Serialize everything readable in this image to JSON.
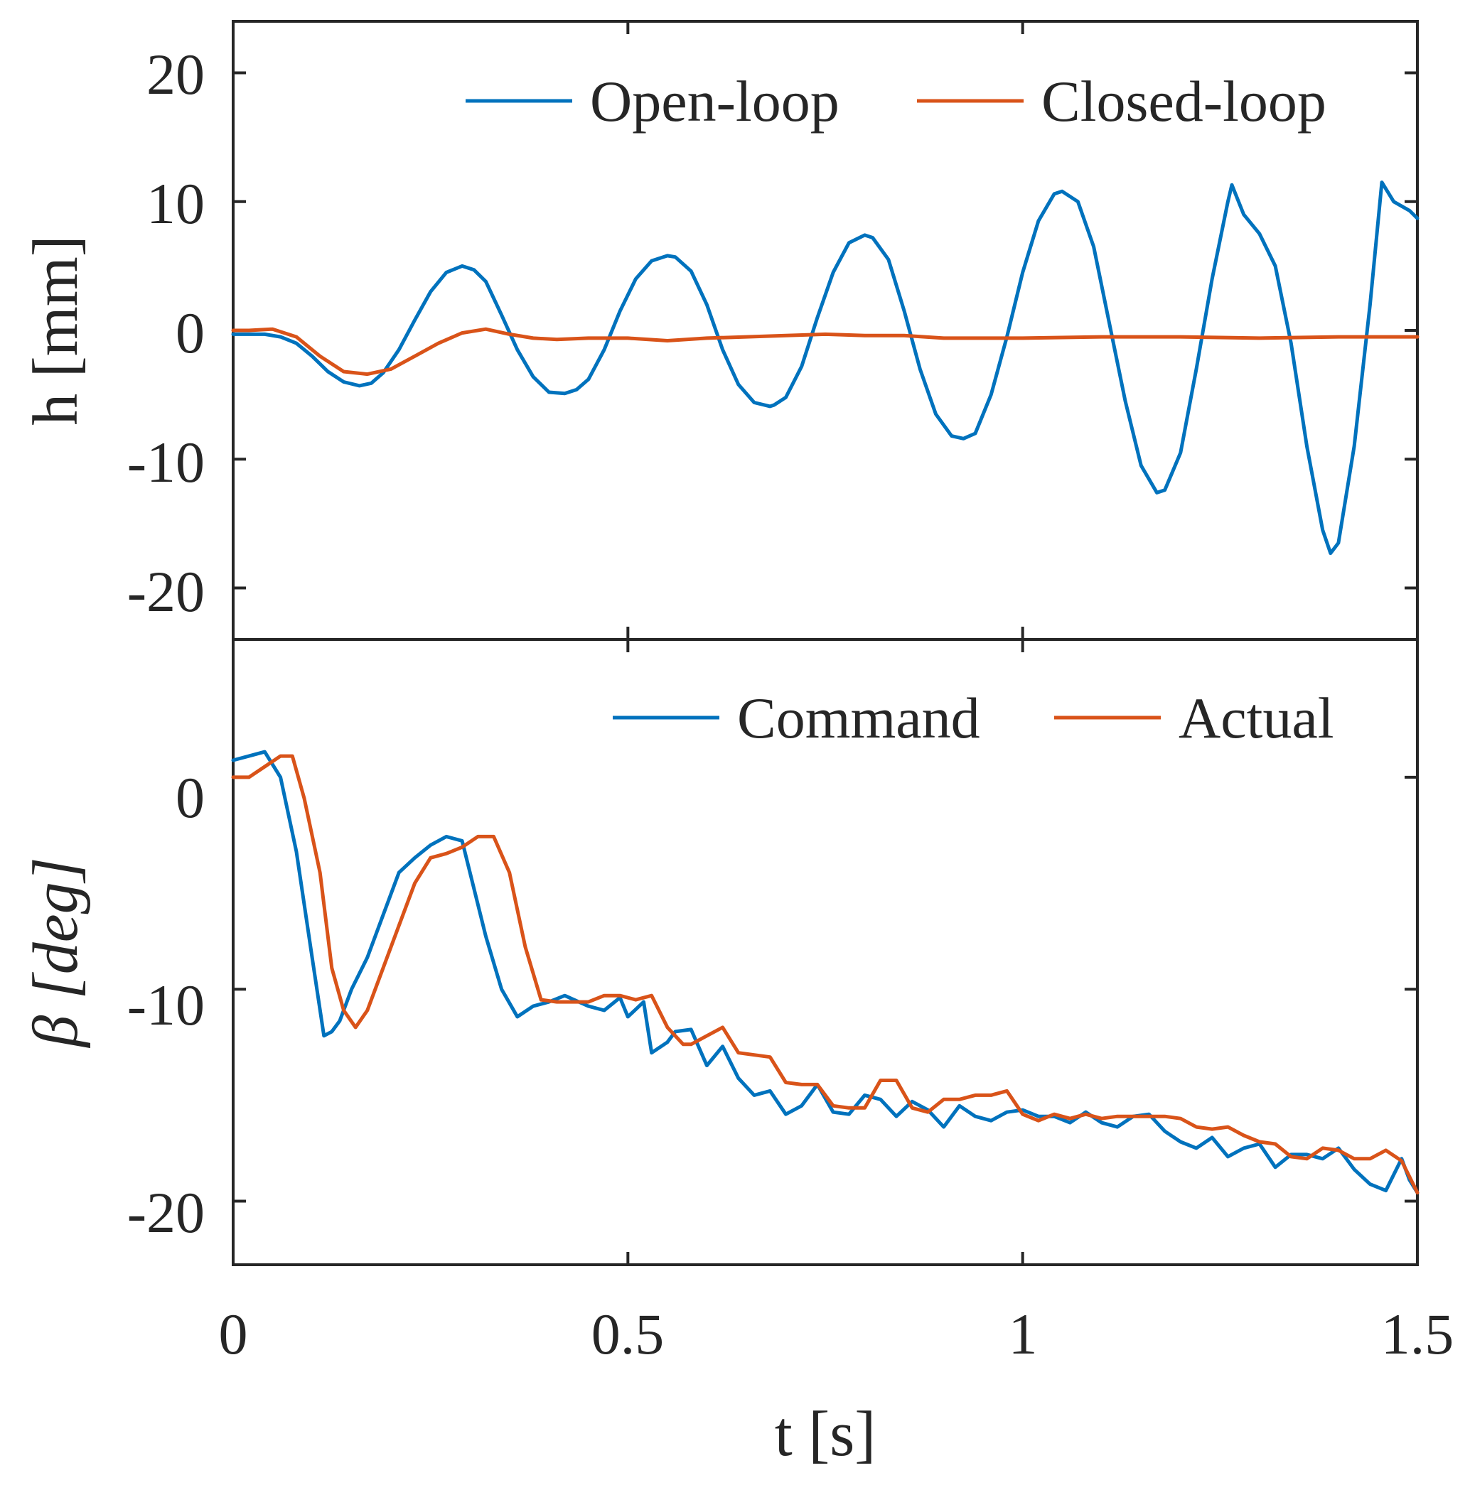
{
  "colors": {
    "series_blue": "#0072BD",
    "series_orange": "#D95319",
    "axes": "#262626",
    "background": "#ffffff"
  },
  "chart_data": [
    {
      "type": "line",
      "panel": "top",
      "title": "",
      "xlabel": "",
      "ylabel": "h [mm]",
      "xlim": [
        0,
        1.5
      ],
      "ylim": [
        -24,
        24
      ],
      "yticks": [
        -20,
        -10,
        0,
        10,
        20
      ],
      "ytick_labels": [
        "-20",
        "-10",
        "0",
        "10",
        "20"
      ],
      "grid": false,
      "legend_position": "top-right",
      "series": [
        {
          "name": "Open-loop",
          "color": "#0072BD",
          "x": [
            0,
            0.02,
            0.04,
            0.06,
            0.08,
            0.1,
            0.12,
            0.14,
            0.16,
            0.175,
            0.19,
            0.21,
            0.23,
            0.25,
            0.27,
            0.29,
            0.305,
            0.32,
            0.34,
            0.36,
            0.38,
            0.4,
            0.42,
            0.435,
            0.45,
            0.47,
            0.49,
            0.51,
            0.53,
            0.55,
            0.56,
            0.58,
            0.6,
            0.62,
            0.64,
            0.66,
            0.68,
            0.685,
            0.7,
            0.72,
            0.74,
            0.76,
            0.78,
            0.8,
            0.81,
            0.83,
            0.85,
            0.87,
            0.89,
            0.91,
            0.925,
            0.94,
            0.96,
            0.98,
            1.0,
            1.02,
            1.04,
            1.05,
            1.07,
            1.09,
            1.11,
            1.13,
            1.15,
            1.17,
            1.18,
            1.2,
            1.22,
            1.24,
            1.26,
            1.265,
            1.28,
            1.3,
            1.32,
            1.34,
            1.36,
            1.38,
            1.39,
            1.4,
            1.42,
            1.44,
            1.455,
            1.47,
            1.49,
            1.5
          ],
          "y": [
            -0.3,
            -0.3,
            -0.3,
            -0.5,
            -1.0,
            -2.0,
            -3.2,
            -4.0,
            -4.3,
            -4.1,
            -3.3,
            -1.5,
            0.8,
            3.0,
            4.5,
            5.0,
            4.7,
            3.8,
            1.2,
            -1.5,
            -3.6,
            -4.8,
            -4.9,
            -4.6,
            -3.8,
            -1.5,
            1.5,
            4.0,
            5.4,
            5.8,
            5.7,
            4.6,
            2.0,
            -1.5,
            -4.2,
            -5.6,
            -5.9,
            -5.8,
            -5.2,
            -2.8,
            1.0,
            4.5,
            6.8,
            7.4,
            7.2,
            5.5,
            1.5,
            -3.0,
            -6.5,
            -8.2,
            -8.4,
            -8.0,
            -5.0,
            -0.5,
            4.5,
            8.5,
            10.6,
            10.8,
            10.0,
            6.5,
            0.5,
            -5.5,
            -10.5,
            -12.6,
            -12.4,
            -9.5,
            -3.0,
            4.0,
            10.0,
            11.3,
            9.0,
            7.5,
            5.0,
            -1.0,
            -9.0,
            -15.5,
            -17.3,
            -16.5,
            -9.0,
            2.0,
            11.5,
            10.0,
            9.3,
            8.7
          ]
        },
        {
          "name": "Closed-loop",
          "color": "#D95319",
          "x": [
            0,
            0.02,
            0.05,
            0.08,
            0.11,
            0.14,
            0.17,
            0.2,
            0.23,
            0.26,
            0.29,
            0.32,
            0.35,
            0.38,
            0.41,
            0.45,
            0.5,
            0.55,
            0.6,
            0.65,
            0.7,
            0.75,
            0.8,
            0.85,
            0.9,
            0.95,
            1.0,
            1.1,
            1.2,
            1.3,
            1.4,
            1.5
          ],
          "y": [
            0.0,
            0.0,
            0.1,
            -0.5,
            -2.0,
            -3.2,
            -3.4,
            -3.0,
            -2.0,
            -1.0,
            -0.2,
            0.1,
            -0.3,
            -0.6,
            -0.7,
            -0.6,
            -0.6,
            -0.8,
            -0.6,
            -0.5,
            -0.4,
            -0.3,
            -0.4,
            -0.4,
            -0.6,
            -0.6,
            -0.6,
            -0.5,
            -0.5,
            -0.6,
            -0.5,
            -0.5
          ]
        }
      ]
    },
    {
      "type": "line",
      "panel": "bottom",
      "title": "",
      "xlabel": "t [s]",
      "ylabel": "β [deg]",
      "xlim": [
        0,
        1.5
      ],
      "ylim": [
        -23,
        6.5
      ],
      "yticks": [
        -20,
        -10,
        0
      ],
      "ytick_labels": [
        "-20",
        "-10",
        "0"
      ],
      "xticks": [
        0,
        0.5,
        1,
        1.5
      ],
      "xtick_labels": [
        "0",
        "0.5",
        "1",
        "1.5"
      ],
      "grid": false,
      "legend_position": "top-right",
      "series": [
        {
          "name": "Command",
          "color": "#0072BD",
          "x": [
            0,
            0.02,
            0.04,
            0.06,
            0.08,
            0.1,
            0.115,
            0.125,
            0.135,
            0.15,
            0.17,
            0.19,
            0.21,
            0.23,
            0.25,
            0.27,
            0.29,
            0.3,
            0.32,
            0.34,
            0.36,
            0.38,
            0.39,
            0.4,
            0.42,
            0.45,
            0.47,
            0.49,
            0.5,
            0.52,
            0.53,
            0.55,
            0.56,
            0.58,
            0.6,
            0.62,
            0.64,
            0.66,
            0.68,
            0.7,
            0.72,
            0.74,
            0.76,
            0.78,
            0.8,
            0.82,
            0.84,
            0.86,
            0.88,
            0.9,
            0.92,
            0.94,
            0.96,
            0.98,
            1.0,
            1.02,
            1.04,
            1.06,
            1.08,
            1.1,
            1.12,
            1.14,
            1.16,
            1.18,
            1.2,
            1.22,
            1.24,
            1.26,
            1.28,
            1.3,
            1.32,
            1.34,
            1.36,
            1.38,
            1.4,
            1.42,
            1.44,
            1.46,
            1.48,
            1.49,
            1.5
          ],
          "y": [
            0.8,
            1.0,
            1.2,
            0.0,
            -3.5,
            -8.5,
            -12.2,
            -12.0,
            -11.5,
            -10.0,
            -8.5,
            -6.5,
            -4.5,
            -3.8,
            -3.2,
            -2.8,
            -3.0,
            -4.5,
            -7.5,
            -10.0,
            -11.3,
            -10.8,
            -10.7,
            -10.6,
            -10.3,
            -10.8,
            -11.0,
            -10.4,
            -11.3,
            -10.6,
            -13.0,
            -12.5,
            -12.0,
            -11.9,
            -13.6,
            -12.7,
            -14.2,
            -15.0,
            -14.8,
            -15.9,
            -15.5,
            -14.5,
            -15.8,
            -15.9,
            -15.0,
            -15.2,
            -16.0,
            -15.3,
            -15.7,
            -16.5,
            -15.5,
            -16.0,
            -16.2,
            -15.8,
            -15.7,
            -16.0,
            -16.0,
            -16.3,
            -15.8,
            -16.3,
            -16.5,
            -16.0,
            -15.9,
            -16.7,
            -17.2,
            -17.5,
            -17.0,
            -17.9,
            -17.5,
            -17.3,
            -18.4,
            -17.8,
            -17.8,
            -18.0,
            -17.5,
            -18.5,
            -19.2,
            -19.5,
            -18.0,
            -19.0,
            -19.6
          ]
        },
        {
          "name": "Actual",
          "color": "#D95319",
          "x": [
            0,
            0.02,
            0.04,
            0.06,
            0.075,
            0.09,
            0.11,
            0.125,
            0.14,
            0.155,
            0.17,
            0.19,
            0.21,
            0.23,
            0.25,
            0.27,
            0.29,
            0.31,
            0.33,
            0.35,
            0.37,
            0.39,
            0.41,
            0.43,
            0.45,
            0.47,
            0.49,
            0.51,
            0.53,
            0.55,
            0.57,
            0.58,
            0.6,
            0.62,
            0.64,
            0.66,
            0.68,
            0.7,
            0.72,
            0.74,
            0.76,
            0.78,
            0.8,
            0.82,
            0.84,
            0.86,
            0.88,
            0.9,
            0.92,
            0.94,
            0.96,
            0.98,
            1.0,
            1.02,
            1.04,
            1.06,
            1.08,
            1.1,
            1.12,
            1.14,
            1.16,
            1.18,
            1.2,
            1.22,
            1.24,
            1.26,
            1.28,
            1.3,
            1.32,
            1.34,
            1.36,
            1.38,
            1.4,
            1.42,
            1.44,
            1.46,
            1.48,
            1.5
          ],
          "y": [
            0.0,
            0.0,
            0.5,
            1.0,
            1.0,
            -1.0,
            -4.5,
            -9.0,
            -11.0,
            -11.8,
            -11.0,
            -9.0,
            -7.0,
            -5.0,
            -3.8,
            -3.6,
            -3.3,
            -2.8,
            -2.8,
            -4.5,
            -8.0,
            -10.5,
            -10.6,
            -10.6,
            -10.6,
            -10.3,
            -10.3,
            -10.5,
            -10.3,
            -11.8,
            -12.6,
            -12.6,
            -12.2,
            -11.8,
            -13.0,
            -13.1,
            -13.2,
            -14.4,
            -14.5,
            -14.5,
            -15.5,
            -15.6,
            -15.6,
            -14.3,
            -14.3,
            -15.6,
            -15.8,
            -15.2,
            -15.2,
            -15.0,
            -15.0,
            -14.8,
            -15.9,
            -16.2,
            -15.9,
            -16.1,
            -15.9,
            -16.1,
            -16.0,
            -16.0,
            -16.0,
            -16.0,
            -16.1,
            -16.5,
            -16.6,
            -16.5,
            -16.9,
            -17.2,
            -17.3,
            -17.9,
            -18.0,
            -17.5,
            -17.6,
            -18.0,
            -18.0,
            -17.6,
            -18.1,
            -19.6
          ]
        }
      ]
    }
  ]
}
